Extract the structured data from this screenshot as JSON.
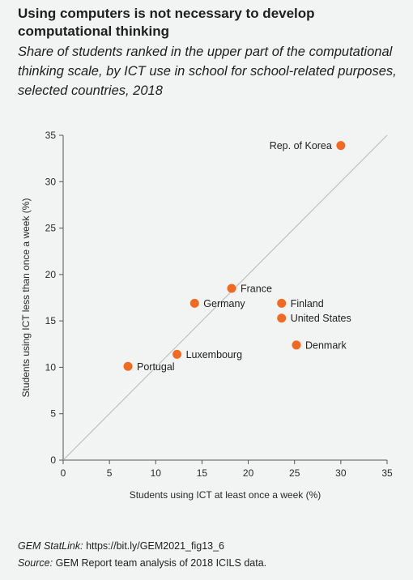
{
  "title": "Using computers is not necessary to develop computational thinking",
  "subtitle": "Share of students ranked in the upper part of the computational thinking scale, by ICT use in school for school-related purposes, selected countries, 2018",
  "chart_data": {
    "type": "scatter",
    "xlabel": "Students using ICT at least once a week (%)",
    "ylabel": "Students using ICT less than once a week (%)",
    "xlim": [
      0,
      35
    ],
    "ylim": [
      0,
      35
    ],
    "xticks": [
      0,
      5,
      10,
      15,
      20,
      25,
      30,
      35
    ],
    "yticks": [
      0,
      5,
      10,
      15,
      20,
      25,
      30,
      35
    ],
    "diagonal_line": true,
    "grid": false,
    "point_color": "#f26a21",
    "points": [
      {
        "label": "Rep. of Korea",
        "x": 30.0,
        "y": 33.9
      },
      {
        "label": "France",
        "x": 18.2,
        "y": 18.5
      },
      {
        "label": "Germany",
        "x": 14.2,
        "y": 16.9
      },
      {
        "label": "Finland",
        "x": 23.6,
        "y": 16.9
      },
      {
        "label": "United States",
        "x": 23.6,
        "y": 15.3
      },
      {
        "label": "Denmark",
        "x": 25.2,
        "y": 12.4
      },
      {
        "label": "Luxembourg",
        "x": 12.3,
        "y": 11.4
      },
      {
        "label": "Portugal",
        "x": 7.0,
        "y": 10.1
      }
    ]
  },
  "footer": {
    "statlink_label": "GEM StatLink:",
    "statlink_url": "https://bit.ly/GEM2021_fig13_6",
    "source_label": "Source:",
    "source_text": "GEM Report team analysis of 2018 ICILS data."
  }
}
